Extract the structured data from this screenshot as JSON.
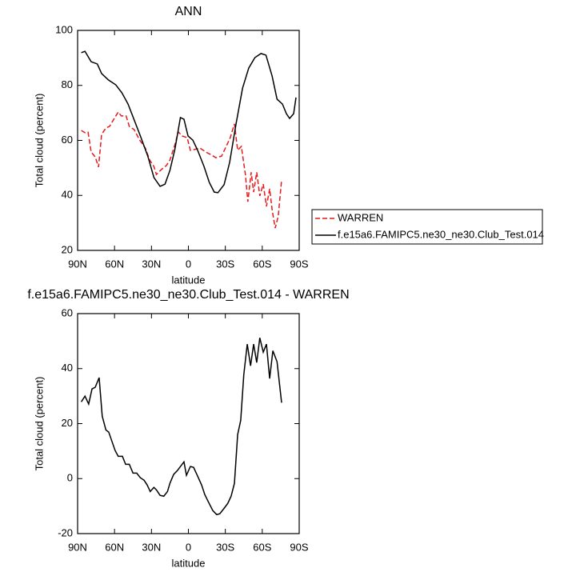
{
  "chart_data": [
    {
      "type": "line",
      "title": "ANN",
      "xlabel": "latitude",
      "ylabel": "Total cloud (percent)",
      "xlim": [
        90,
        -90
      ],
      "ylim": [
        20,
        100
      ],
      "xticks": [
        {
          "value": 90,
          "label": "90N"
        },
        {
          "value": 60,
          "label": "60N"
        },
        {
          "value": 30,
          "label": "30N"
        },
        0,
        {
          "value": -30,
          "label": "30S"
        },
        {
          "value": -60,
          "label": "60S"
        },
        {
          "value": -90,
          "label": "90S"
        }
      ],
      "yticks": [
        20,
        40,
        60,
        80,
        100
      ],
      "legend": "outside-right",
      "series": [
        {
          "name": "WARREN",
          "color": "#e41a1c",
          "dashed": true,
          "x": [
            87,
            84,
            81.5,
            79,
            75.7,
            73,
            70.5,
            67,
            64,
            61,
            57,
            54.5,
            50.6,
            48,
            44,
            40,
            35,
            31.5,
            28,
            26,
            22,
            18,
            15,
            11.4,
            8.2,
            5,
            1,
            -1.6,
            -4.9,
            -9.4,
            -14,
            -17.9,
            -22.4,
            -27,
            -31,
            -34,
            -37.4,
            -40,
            -43,
            -46.3,
            -48.3,
            -51,
            -53,
            -55.5,
            -58,
            -60.8,
            -63.4,
            -66,
            -68,
            -70.5,
            -73,
            -75.7
          ],
          "values": [
            63.6,
            62.8,
            63,
            55.8,
            54,
            50.3,
            62.2,
            64.5,
            65.1,
            67.4,
            70.3,
            68.9,
            68.9,
            65.1,
            63.9,
            60.4,
            57.2,
            52.9,
            50.5,
            47.6,
            49.4,
            50.8,
            52.9,
            57.8,
            63.1,
            61.6,
            61,
            56.4,
            56.7,
            57.2,
            55.8,
            54.9,
            53.7,
            54.3,
            58.1,
            61,
            66,
            56.4,
            57.8,
            47.6,
            37.7,
            48.4,
            41.2,
            48.4,
            39.8,
            44.1,
            36,
            42.4,
            34.8,
            28.1,
            32.5,
            45.6
          ]
        },
        {
          "name": "f.e15a6.FAMIPC5.ne30_ne30.Club_Test.014",
          "color": "#000000",
          "dashed": false,
          "x": [
            87,
            84,
            79,
            74,
            70.5,
            65,
            59,
            54,
            49,
            44,
            39,
            33,
            28,
            23,
            19,
            15,
            11,
            6.5,
            3.6,
            0.3,
            -3.6,
            -7.5,
            -12.7,
            -17,
            -21,
            -24,
            -29,
            -33.5,
            -38.7,
            -44,
            -49,
            -54,
            -59,
            -63,
            -68,
            -72,
            -76.4,
            -79.6,
            -82.2,
            -85.5,
            -87.4
          ],
          "values": [
            91.9,
            92.4,
            88.6,
            87.8,
            84.3,
            82,
            80.2,
            77.3,
            73.2,
            67.4,
            61.6,
            54.3,
            46.5,
            43.3,
            44.1,
            49.1,
            56.7,
            68.3,
            67.7,
            61.6,
            60.1,
            56.4,
            50.5,
            44.7,
            41.2,
            41,
            43.9,
            52,
            66,
            79,
            86.3,
            90.1,
            91.6,
            91,
            83.4,
            75,
            73.2,
            69.7,
            68,
            69.7,
            75.6
          ]
        }
      ]
    },
    {
      "type": "line",
      "title": "f.e15a6.FAMIPC5.ne30_ne30.Club_Test.014 - WARREN",
      "xlabel": "latitude",
      "ylabel": "Total cloud (percent)",
      "xlim": [
        90,
        -90
      ],
      "ylim": [
        -20,
        60
      ],
      "xticks": [
        {
          "value": 90,
          "label": "90N"
        },
        {
          "value": 60,
          "label": "60N"
        },
        {
          "value": 30,
          "label": "30N"
        },
        0,
        {
          "value": -30,
          "label": "30S"
        },
        {
          "value": -60,
          "label": "60S"
        },
        {
          "value": -90,
          "label": "90S"
        }
      ],
      "yticks": [
        -20,
        0,
        20,
        40,
        60
      ],
      "series": [
        {
          "color": "#000000",
          "dashed": false,
          "x": [
            87,
            84,
            81,
            78.3,
            75.7,
            72.5,
            70,
            67,
            64.7,
            62,
            59.5,
            57,
            53.6,
            51,
            48,
            45,
            42,
            39,
            36,
            33.5,
            31,
            28,
            26,
            23,
            20,
            17,
            15,
            12,
            9,
            7,
            3.6,
            1.6,
            -1.6,
            -4.2,
            -7.5,
            -10.7,
            -13.3,
            -16.5,
            -19.8,
            -23,
            -25.5,
            -29,
            -32,
            -34.7,
            -37.4,
            -40,
            -42.5,
            -45,
            -47.8,
            -50.5,
            -53,
            -55.5,
            -58,
            -60.8,
            -63.4,
            -66,
            -68.6,
            -72,
            -75.7
          ],
          "values": [
            27.9,
            30,
            27.1,
            32.6,
            33.2,
            36.7,
            22.7,
            17.7,
            16.9,
            13.4,
            10.2,
            8.1,
            8.1,
            5.2,
            5.2,
            2,
            2,
            0.3,
            -0.6,
            -2.3,
            -4.7,
            -3.2,
            -4.1,
            -6.1,
            -6.4,
            -4.7,
            -1.7,
            1.5,
            2.9,
            4.1,
            6.1,
            1.2,
            4.4,
            4.1,
            0.9,
            -2.3,
            -5.8,
            -8.7,
            -11.6,
            -13.1,
            -12.8,
            -10.8,
            -9,
            -6.4,
            -1.7,
            16,
            21.2,
            37.8,
            48.9,
            41,
            48.9,
            42.2,
            51.2,
            46,
            48.9,
            36.4,
            46.5,
            42.5,
            27.6
          ]
        }
      ]
    }
  ]
}
